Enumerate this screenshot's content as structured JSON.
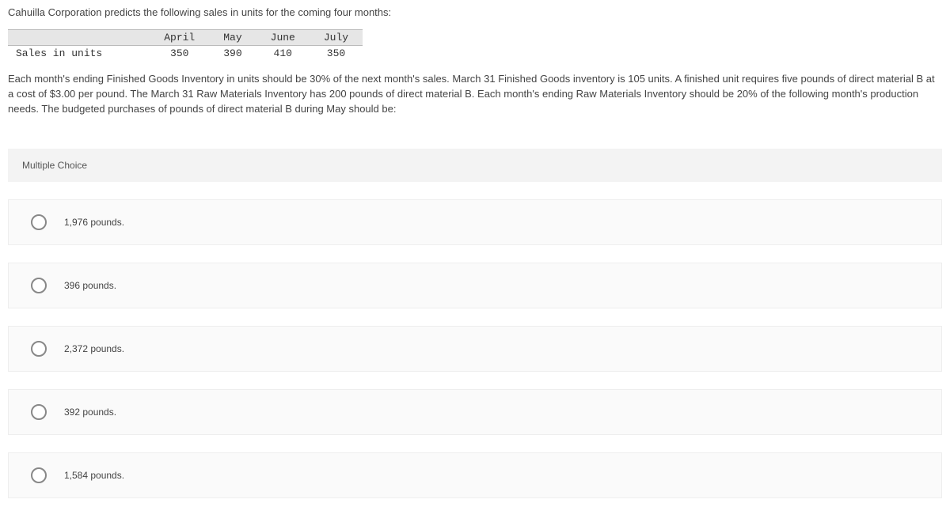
{
  "intro": "Cahuilla Corporation predicts the following sales in units for the coming four months:",
  "table": {
    "row_label_blank": "",
    "row_label": "Sales in units",
    "columns": [
      "April",
      "May",
      "June",
      "July"
    ],
    "values": [
      "350",
      "390",
      "410",
      "350"
    ]
  },
  "description": "Each month's ending Finished Goods Inventory in units should be 30% of the next month's sales. March 31 Finished Goods inventory is 105 units. A finished unit requires five pounds of direct material B at a cost of $3.00 per pound. The March 31 Raw Materials Inventory has 200 pounds of direct material B. Each month's ending Raw Materials Inventory should be 20% of the following month's production needs. The budgeted purchases of pounds of direct material B during May should be:",
  "mc_label": "Multiple Choice",
  "options": [
    "1,976 pounds.",
    "396 pounds.",
    "2,372 pounds.",
    "392 pounds.",
    "1,584 pounds."
  ],
  "colors": {
    "header_bg": "#e6e6e6",
    "option_bg": "#fafafa",
    "mc_bg": "#f3f3f3",
    "text": "#444444",
    "radio_border": "#888888"
  }
}
